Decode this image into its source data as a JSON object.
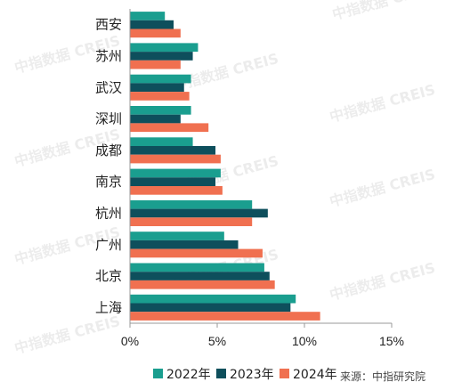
{
  "chart_data": {
    "type": "bar",
    "orientation": "horizontal",
    "categories": [
      "西安",
      "苏州",
      "武汉",
      "深圳",
      "成都",
      "南京",
      "杭州",
      "广州",
      "北京",
      "上海"
    ],
    "series": [
      {
        "name": "2022年",
        "color": "#1a9e8f",
        "values": [
          2.0,
          3.9,
          3.5,
          3.5,
          3.6,
          5.2,
          7.0,
          5.4,
          7.7,
          9.5
        ]
      },
      {
        "name": "2023年",
        "color": "#0e4f5c",
        "values": [
          2.5,
          3.6,
          3.1,
          2.9,
          4.9,
          4.9,
          7.9,
          6.2,
          8.0,
          9.2
        ]
      },
      {
        "name": "2024年",
        "color": "#f07050",
        "values": [
          2.9,
          2.9,
          3.4,
          4.5,
          5.2,
          5.3,
          7.0,
          7.6,
          8.3,
          10.9
        ]
      }
    ],
    "xticks": [
      "0%",
      "5%",
      "10%",
      "15%"
    ],
    "xlim": [
      0,
      15
    ],
    "legend_position": "bottom",
    "grid": false
  },
  "watermark": "中指数据 CREIS",
  "source": "来源：中指研究院"
}
